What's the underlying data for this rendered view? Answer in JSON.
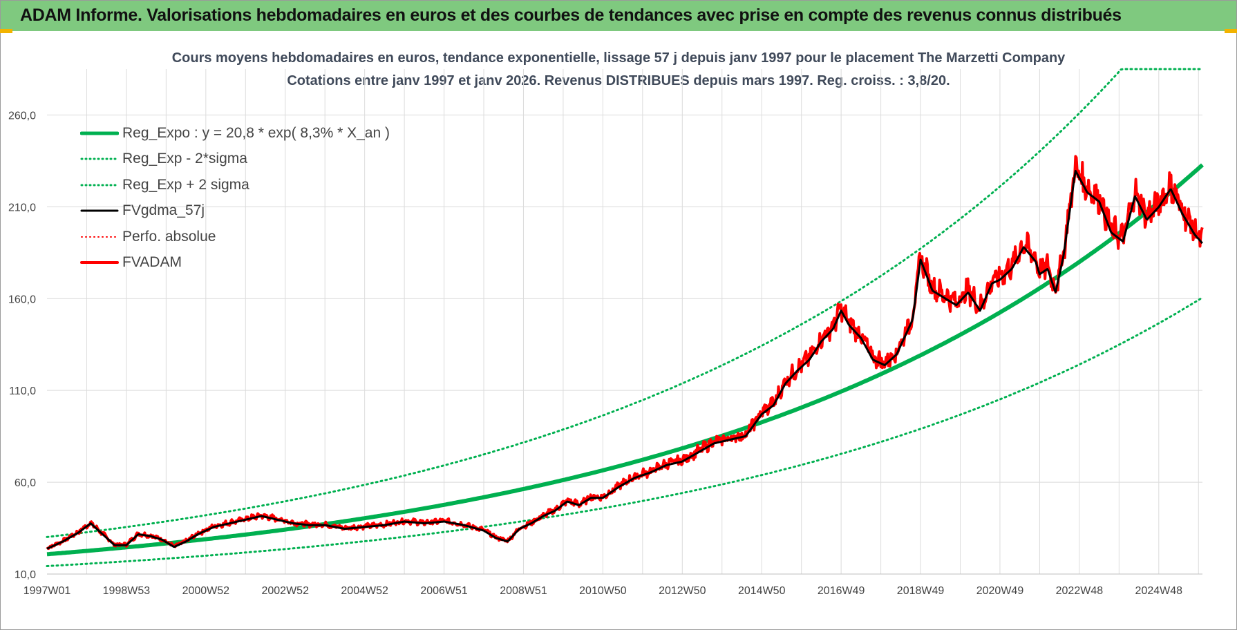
{
  "header": {
    "title": "ADAM Informe. Valorisations hebdomadaires en euros et des courbes de tendances avec prise en compte des revenus connus distribués"
  },
  "chart_data": {
    "type": "line",
    "title": "Cours moyens hebdomadaires en euros, tendance exponentielle, lissage 57 j depuis janv 1997 pour le placement The Marzetti Company",
    "subtitle": "Cotations entre janv 1997 et janv 2026. Revenus DISTRIBUES depuis mars 1997.  Reg. croiss. : 3,8/20.",
    "xlabel": "",
    "ylabel": "",
    "ylim": [
      10,
      285
    ],
    "yticks": [
      "10,0",
      "60,0",
      "110,0",
      "160,0",
      "210,0",
      "260,0"
    ],
    "ytick_values": [
      10,
      60,
      110,
      160,
      210,
      260
    ],
    "xticks": [
      "1997W01",
      "1998W53",
      "2000W52",
      "2002W52",
      "2004W52",
      "2006W51",
      "2008W51",
      "2010W50",
      "2012W50",
      "2014W50",
      "2016W49",
      "2018W49",
      "2020W49",
      "2022W48",
      "2024W48"
    ],
    "xtick_years": [
      1997.0,
      1999.0,
      2001.0,
      2003.0,
      2005.0,
      2007.0,
      2009.0,
      2011.0,
      2013.0,
      2015.0,
      2017.0,
      2019.0,
      2021.0,
      2023.0,
      2025.0
    ],
    "xlim": [
      1997.0,
      2026.1
    ],
    "grid": true,
    "legend_position": "top-left",
    "regression": {
      "a": 20.8,
      "rate_pct": 8.3,
      "sigma_factor": 1.45
    },
    "series": [
      {
        "name": "Reg_Expo : y = 20,8 * exp( 8,3% *  X_an )",
        "color": "#00b050",
        "style": "solid",
        "width": 6
      },
      {
        "name": "Reg_Exp - 2*sigma",
        "color": "#00b050",
        "style": "dotted",
        "width": 3
      },
      {
        "name": "Reg_Exp + 2 sigma",
        "color": "#00b050",
        "style": "dotted",
        "width": 3
      },
      {
        "name": "FVgdma_57j",
        "color": "#000000",
        "style": "solid",
        "width": 3
      },
      {
        "name": "Perfo. absolue",
        "color": "#ff0000",
        "style": "dotted",
        "width": 2
      },
      {
        "name": "FVADAM",
        "color": "#ff0000",
        "style": "solid",
        "width": 4
      }
    ],
    "price_series": {
      "x": [
        1997.0,
        1997.4,
        1997.8,
        1998.1,
        1998.4,
        1998.7,
        1999.0,
        1999.3,
        1999.6,
        1999.9,
        2000.2,
        2000.5,
        2000.8,
        2001.2,
        2001.6,
        2002.0,
        2002.4,
        2002.8,
        2003.2,
        2003.6,
        2004.0,
        2004.5,
        2005.0,
        2005.5,
        2006.0,
        2006.5,
        2007.0,
        2007.5,
        2008.0,
        2008.3,
        2008.6,
        2008.9,
        2009.2,
        2009.5,
        2009.8,
        2010.1,
        2010.4,
        2010.7,
        2011.0,
        2011.4,
        2011.8,
        2012.2,
        2012.6,
        2013.0,
        2013.4,
        2013.8,
        2014.2,
        2014.6,
        2015.0,
        2015.3,
        2015.6,
        2015.9,
        2016.2,
        2016.5,
        2016.8,
        2017.0,
        2017.2,
        2017.5,
        2017.8,
        2018.1,
        2018.4,
        2018.8,
        2019.0,
        2019.3,
        2019.6,
        2019.9,
        2020.2,
        2020.5,
        2020.8,
        2021.0,
        2021.3,
        2021.6,
        2021.9,
        2022.0,
        2022.2,
        2022.4,
        2022.6,
        2022.9,
        2023.2,
        2023.5,
        2023.8,
        2024.1,
        2024.4,
        2024.7,
        2025.0,
        2025.3,
        2025.6,
        2025.9,
        2026.1
      ],
      "values": [
        24,
        28,
        33,
        38,
        32,
        26,
        26,
        32,
        31,
        29,
        25,
        28,
        32,
        36,
        38,
        40,
        42,
        40,
        38,
        37,
        37,
        35,
        36,
        37,
        39,
        38,
        39,
        37,
        34,
        30,
        28,
        35,
        38,
        42,
        45,
        50,
        48,
        52,
        52,
        58,
        63,
        66,
        70,
        72,
        77,
        82,
        84,
        86,
        98,
        103,
        115,
        122,
        128,
        138,
        145,
        155,
        147,
        140,
        128,
        125,
        131,
        150,
        183,
        166,
        162,
        158,
        165,
        155,
        170,
        172,
        178,
        190,
        182,
        175,
        178,
        165,
        185,
        232,
        220,
        215,
        198,
        193,
        218,
        205,
        212,
        222,
        208,
        197,
        192
      ]
    }
  }
}
